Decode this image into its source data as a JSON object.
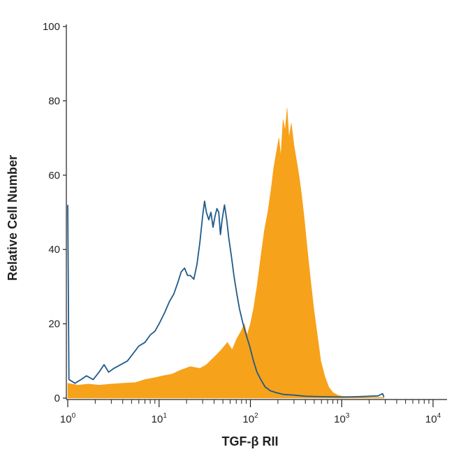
{
  "chart_data": {
    "type": "area",
    "title": "",
    "xlabel": "TGF-β RII",
    "ylabel": "Relative Cell Number",
    "xscale": "log",
    "xlim": [
      1,
      10000
    ],
    "ylim": [
      0,
      100
    ],
    "grid": false,
    "legend": "none",
    "x_ticks": [
      {
        "value": 1,
        "base": "10",
        "exp": "0"
      },
      {
        "value": 10,
        "base": "10",
        "exp": "1"
      },
      {
        "value": 100,
        "base": "10",
        "exp": "2"
      },
      {
        "value": 1000,
        "base": "10",
        "exp": "3"
      },
      {
        "value": 10000,
        "base": "10",
        "exp": "4"
      }
    ],
    "y_ticks": [
      {
        "value": 0,
        "label": "0"
      },
      {
        "value": 20,
        "label": "20"
      },
      {
        "value": 40,
        "label": "40"
      },
      {
        "value": 60,
        "label": "60"
      },
      {
        "value": 80,
        "label": "80"
      },
      {
        "value": 100,
        "label": "100"
      }
    ],
    "series": [
      {
        "style": "filled",
        "color": "#f7a21b",
        "points": [
          [
            1.0,
            4
          ],
          [
            1.3,
            3.5
          ],
          [
            1.7,
            3.8
          ],
          [
            2.2,
            3.5
          ],
          [
            3.0,
            3.8
          ],
          [
            4.0,
            4
          ],
          [
            5.5,
            4.2
          ],
          [
            7.0,
            5
          ],
          [
            9.0,
            5.5
          ],
          [
            11,
            6
          ],
          [
            14,
            6.5
          ],
          [
            17,
            7.5
          ],
          [
            22,
            8.5
          ],
          [
            28,
            8
          ],
          [
            33,
            9
          ],
          [
            40,
            11
          ],
          [
            48,
            13
          ],
          [
            56,
            15
          ],
          [
            63,
            13
          ],
          [
            71,
            16
          ],
          [
            79,
            18
          ],
          [
            86,
            20
          ],
          [
            92,
            17
          ],
          [
            100,
            20
          ],
          [
            108,
            24
          ],
          [
            118,
            30
          ],
          [
            130,
            38
          ],
          [
            142,
            45
          ],
          [
            155,
            50
          ],
          [
            168,
            56
          ],
          [
            180,
            62
          ],
          [
            192,
            66
          ],
          [
            205,
            70
          ],
          [
            215,
            65
          ],
          [
            228,
            75
          ],
          [
            240,
            72
          ],
          [
            252,
            78
          ],
          [
            265,
            70
          ],
          [
            280,
            74
          ],
          [
            300,
            68
          ],
          [
            320,
            64
          ],
          [
            340,
            60
          ],
          [
            362,
            55
          ],
          [
            390,
            48
          ],
          [
            420,
            40
          ],
          [
            455,
            32
          ],
          [
            495,
            24
          ],
          [
            540,
            17
          ],
          [
            590,
            10
          ],
          [
            650,
            6
          ],
          [
            720,
            3
          ],
          [
            800,
            1.5
          ],
          [
            900,
            0.8
          ],
          [
            1000,
            0.5
          ],
          [
            1300,
            0.3
          ],
          [
            2000,
            0.2
          ],
          [
            2900,
            0.2
          ]
        ]
      },
      {
        "style": "line",
        "color": "#1f5a8a",
        "points": [
          [
            1.0,
            52
          ],
          [
            1.03,
            5
          ],
          [
            1.2,
            4
          ],
          [
            1.4,
            5
          ],
          [
            1.6,
            6
          ],
          [
            1.9,
            5
          ],
          [
            2.2,
            7
          ],
          [
            2.5,
            9
          ],
          [
            2.8,
            7
          ],
          [
            3.2,
            8
          ],
          [
            3.8,
            9
          ],
          [
            4.5,
            10
          ],
          [
            5.2,
            12
          ],
          [
            6.0,
            14
          ],
          [
            7.0,
            15
          ],
          [
            8.0,
            17
          ],
          [
            9.0,
            18
          ],
          [
            10,
            20
          ],
          [
            11.5,
            23
          ],
          [
            13,
            26
          ],
          [
            14.5,
            28
          ],
          [
            16,
            31
          ],
          [
            17.5,
            34
          ],
          [
            19,
            35
          ],
          [
            20.5,
            33
          ],
          [
            22,
            33
          ],
          [
            24,
            32
          ],
          [
            26,
            36
          ],
          [
            28,
            42
          ],
          [
            30,
            49
          ],
          [
            31.5,
            53
          ],
          [
            33,
            50
          ],
          [
            35,
            48
          ],
          [
            37,
            50
          ],
          [
            39,
            46
          ],
          [
            41,
            49
          ],
          [
            43,
            51
          ],
          [
            45,
            50
          ],
          [
            47,
            44
          ],
          [
            49,
            48
          ],
          [
            52,
            52
          ],
          [
            55,
            48
          ],
          [
            58,
            43
          ],
          [
            62,
            38
          ],
          [
            66,
            33
          ],
          [
            71,
            28
          ],
          [
            76,
            24
          ],
          [
            83,
            20
          ],
          [
            90,
            17
          ],
          [
            98,
            14
          ],
          [
            108,
            10
          ],
          [
            118,
            7
          ],
          [
            130,
            5
          ],
          [
            145,
            3
          ],
          [
            165,
            2
          ],
          [
            190,
            1.5
          ],
          [
            230,
            1
          ],
          [
            300,
            0.8
          ],
          [
            400,
            0.5
          ],
          [
            600,
            0.4
          ],
          [
            1000,
            0.3
          ],
          [
            1500,
            0.4
          ],
          [
            2000,
            0.5
          ],
          [
            2500,
            0.6
          ],
          [
            2800,
            1.2
          ],
          [
            2900,
            0.3
          ]
        ]
      }
    ]
  }
}
